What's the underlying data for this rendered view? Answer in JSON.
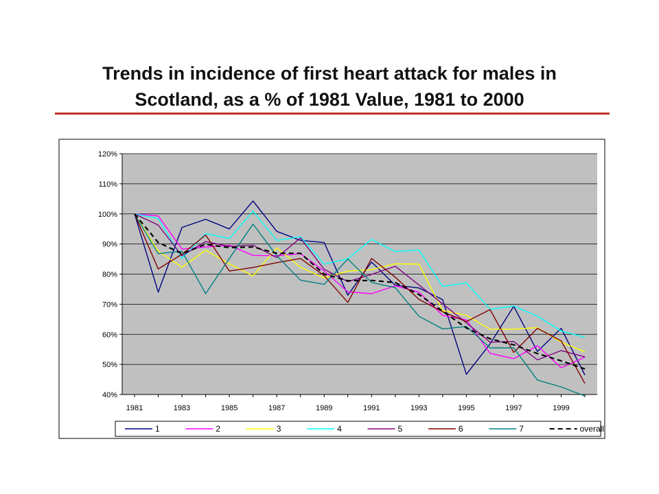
{
  "slide": {
    "title_line1": "Trends in incidence of first heart attack for males in",
    "title_line2": "Scotland,  as a % of 1981 Value, 1981 to 2000"
  },
  "chart_data": {
    "type": "line",
    "title": "",
    "xlabel": "",
    "ylabel": "",
    "x": [
      1981,
      1982,
      1983,
      1984,
      1985,
      1986,
      1987,
      1988,
      1989,
      1990,
      1991,
      1992,
      1993,
      1994,
      1995,
      1996,
      1997,
      1998,
      1999,
      2000
    ],
    "x_tick_labels": [
      "1981",
      "1983",
      "1985",
      "1987",
      "1989",
      "1991",
      "1993",
      "1995",
      "1997",
      "1999"
    ],
    "y_tick_labels": [
      "40%",
      "50%",
      "60%",
      "70%",
      "80%",
      "90%",
      "100%",
      "110%",
      "120%"
    ],
    "ylim": [
      40,
      120
    ],
    "y_unit": "%",
    "grid": "horizontal",
    "legend_position": "bottom",
    "plot_background": "#c0c0c0",
    "series": [
      {
        "name": "1",
        "color": "#000080",
        "dash": "solid",
        "values": [
          100,
          74,
          95.5,
          98.2,
          95,
          104.3,
          94.2,
          91.2,
          90.5,
          73,
          84,
          76.3,
          75.4,
          71.5,
          46.7,
          56.8,
          69.3,
          54.3,
          62,
          46.5
        ]
      },
      {
        "name": "2",
        "color": "#ff00ff",
        "dash": "solid",
        "values": [
          100,
          99.3,
          88.3,
          89,
          89.6,
          86.2,
          86.1,
          86.8,
          81,
          74.1,
          73.5,
          76.1,
          74,
          66.3,
          64.8,
          53.7,
          51.9,
          56.2,
          48.9,
          52.4
        ]
      },
      {
        "name": "3",
        "color": "#ffff00",
        "dash": "solid",
        "values": [
          100,
          87.6,
          82.3,
          87.9,
          83.4,
          79.4,
          88.7,
          82.3,
          78.7,
          81,
          81.5,
          83.4,
          83.3,
          67.9,
          66.3,
          61.7,
          61.7,
          62.2,
          57.4,
          54.2
        ]
      },
      {
        "name": "4",
        "color": "#00ffff",
        "dash": "solid",
        "values": [
          100,
          98.5,
          85.2,
          93.5,
          91.8,
          100.9,
          91.2,
          92.4,
          83.3,
          85.1,
          91.5,
          87.5,
          88,
          75.9,
          77.1,
          68.3,
          69.4,
          66,
          61.1,
          59
        ]
      },
      {
        "name": "5",
        "color": "#800080",
        "dash": "solid",
        "values": [
          100,
          96.3,
          86.1,
          90.8,
          89.2,
          89.6,
          85.5,
          92,
          81.6,
          77.5,
          79.9,
          82.6,
          76.4,
          70.1,
          63.8,
          57.4,
          57.6,
          51.5,
          54.6,
          52.5
        ]
      },
      {
        "name": "6",
        "color": "#800000",
        "dash": "solid",
        "values": [
          100,
          81.7,
          86.6,
          93,
          81,
          82.2,
          83.8,
          85.2,
          79.5,
          70.6,
          85.2,
          79,
          71.6,
          67.5,
          64.2,
          68.2,
          54,
          62,
          57.8,
          43.7
        ]
      },
      {
        "name": "7",
        "color": "#008080",
        "dash": "solid",
        "values": [
          100,
          86.8,
          87.6,
          73.5,
          85.2,
          96.6,
          86.1,
          78,
          76.6,
          85,
          77.2,
          75.5,
          66,
          61.8,
          62.6,
          55.5,
          55.5,
          44.8,
          42.5,
          39.5
        ]
      },
      {
        "name": "overall",
        "color": "#000000",
        "dash": "dashed",
        "values": [
          100,
          90.5,
          86.8,
          89.9,
          88.8,
          89,
          86.9,
          86.9,
          80,
          77.8,
          77.9,
          77.2,
          73.2,
          67.7,
          62.1,
          58.5,
          56.5,
          53.6,
          51.2,
          48.5
        ]
      }
    ]
  }
}
